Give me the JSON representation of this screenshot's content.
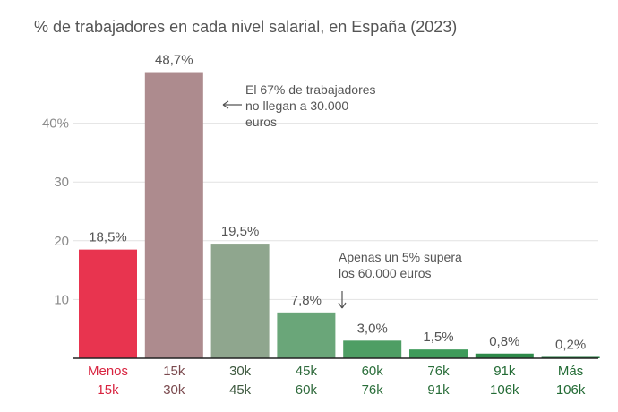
{
  "chart_data": {
    "type": "bar",
    "title": "% de trabajadores en cada nivel salarial, en España (2023)",
    "categories": [
      {
        "line1": "Menos",
        "line2": "15k"
      },
      {
        "line1": "15k",
        "line2": "30k"
      },
      {
        "line1": "30k",
        "line2": "45k"
      },
      {
        "line1": "45k",
        "line2": "60k"
      },
      {
        "line1": "60k",
        "line2": "76k"
      },
      {
        "line1": "76k",
        "line2": "91k"
      },
      {
        "line1": "91k",
        "line2": "106k"
      },
      {
        "line1": "Más",
        "line2": "106k"
      }
    ],
    "values": [
      18.5,
      48.7,
      19.5,
      7.8,
      3.0,
      1.5,
      0.8,
      0.2
    ],
    "value_labels": [
      "18,5%",
      "48,7%",
      "19,5%",
      "7,8%",
      "3,0%",
      "1,5%",
      "0,8%",
      "0,2%"
    ],
    "bar_colors": [
      "#e8344f",
      "#ad8b8e",
      "#8fa68e",
      "#6aa679",
      "#4e9e64",
      "#3e9b5a",
      "#2e8a4a",
      "#1f7a3c"
    ],
    "label_colors": [
      "#d8233f",
      "#7a4a4e",
      "#3f5a40",
      "#2f6a3c",
      "#2a6e3a",
      "#2a6e3a",
      "#236b35",
      "#236b35"
    ],
    "y_ticks": [
      {
        "value": 10,
        "label": "10"
      },
      {
        "value": 20,
        "label": "20"
      },
      {
        "value": 30,
        "label": "30"
      },
      {
        "value": 40,
        "label": "40%"
      }
    ],
    "ylim": [
      0,
      50
    ],
    "grid": true,
    "annotations": [
      {
        "lines": [
          "El 67% de trabajadores",
          "no llegan a 30.000",
          "euros"
        ],
        "arrow": "left",
        "target_index": 1
      },
      {
        "lines": [
          "Apenas un 5% supera",
          "los 60.000 euros"
        ],
        "arrow": "down",
        "target_index": 3
      }
    ]
  }
}
